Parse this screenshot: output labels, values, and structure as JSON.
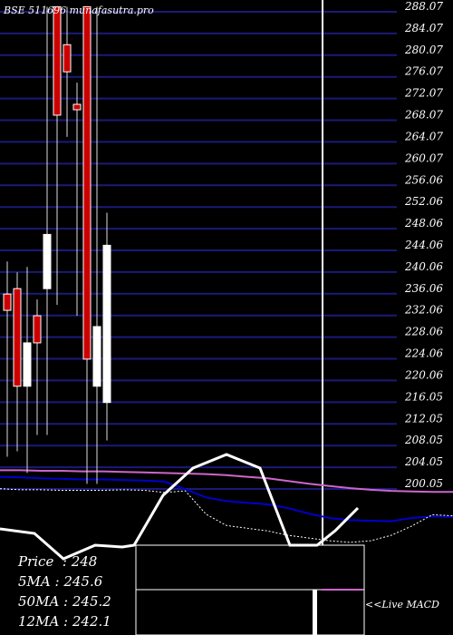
{
  "chart_data": {
    "type": "candlestick",
    "watermark": "BSE 511696 munafasutra.pro",
    "y_ticks": [
      "288.07",
      "284.07",
      "280.07",
      "276.07",
      "272.07",
      "268.07",
      "264.07",
      "260.07",
      "256.06",
      "252.06",
      "248.06",
      "244.06",
      "240.06",
      "236.06",
      "232.06",
      "228.06",
      "224.06",
      "220.06",
      "216.05",
      "212.05",
      "208.05",
      "204.05",
      "200.05"
    ],
    "ylim": [
      198,
      289
    ],
    "candles": [
      {
        "open": 236,
        "close": 233,
        "high": 242,
        "low": 206,
        "color": "red"
      },
      {
        "open": 237,
        "close": 219,
        "high": 240,
        "low": 207,
        "color": "red"
      },
      {
        "open": 219,
        "close": 227,
        "high": 241,
        "low": 203,
        "color": "white"
      },
      {
        "open": 232,
        "close": 227,
        "high": 235,
        "low": 210,
        "color": "red"
      },
      {
        "open": 237,
        "close": 247,
        "high": 289,
        "low": 210,
        "color": "white"
      },
      {
        "open": 289,
        "close": 269,
        "high": 289,
        "low": 234,
        "color": "red"
      },
      {
        "open": 282,
        "close": 277,
        "high": 289,
        "low": 265,
        "color": "red"
      },
      {
        "open": 271,
        "close": 270,
        "high": 275,
        "low": 232,
        "color": "red"
      },
      {
        "open": 289,
        "close": 224,
        "high": 289,
        "low": 201,
        "color": "red"
      },
      {
        "open": 219,
        "close": 230,
        "high": 289,
        "low": 201,
        "color": "white"
      },
      {
        "open": 216,
        "close": 245,
        "high": 251,
        "low": 209,
        "color": "white"
      }
    ],
    "ma_lines": [
      {
        "name": "5MA",
        "color": "#cc66cc",
        "values": [
          203.5,
          203.5,
          203.4,
          203.4,
          203.3,
          203.3,
          203.2,
          203.1,
          203.0,
          202.9,
          202.8,
          202.6,
          202.3,
          202.0,
          201.5,
          201.0,
          200.6,
          200.2,
          199.9,
          199.7,
          199.6,
          199.5,
          199.5
        ]
      },
      {
        "name": "50MA",
        "color": "#0000cc",
        "values": [
          202.3,
          202.2,
          202.0,
          201.9,
          201.8,
          201.8,
          201.7,
          201.6,
          201.4,
          200.0,
          198.5,
          197.8,
          197.5,
          197.2,
          196.5,
          195.5,
          194.7,
          194.3,
          194.2,
          194.1,
          194.7,
          195.0,
          194.9
        ]
      },
      {
        "name": "12MA",
        "color": "#ffffff",
        "dashed": true,
        "values": [
          200.1,
          199.9,
          199.9,
          199.8,
          199.8,
          199.8,
          199.9,
          199.8,
          199.4,
          199.7,
          195.4,
          193.3,
          192.8,
          192.3,
          191.5,
          191.0,
          190.5,
          190.2,
          190.5,
          191.5,
          193.2,
          195.3,
          195.1
        ]
      }
    ],
    "info": {
      "price_label": "Price",
      "price_value": "248",
      "ma5_label": "5MA",
      "ma5_value": "245.6",
      "ma50_label": "50MA",
      "ma50_value": "245.2",
      "ma12_label": "12MA",
      "ma12_value": "242.1"
    },
    "macd": {
      "label": "<<Live MACD",
      "line_values": [
        -1.2,
        -1.3,
        -1.3,
        -1.6,
        -1.6,
        -1.2,
        -0.2,
        0.6,
        1.3,
        1.1,
        0.6,
        -1.0,
        -1.0,
        -0.4,
        -0.7
      ]
    },
    "colors": {
      "background": "#000000",
      "grid": "#1a1a7a",
      "up": "#ffffff",
      "down": "#cc0000",
      "ma5": "#cc66cc",
      "ma50": "#0000cc",
      "macd_signal": "#cc66cc"
    }
  }
}
